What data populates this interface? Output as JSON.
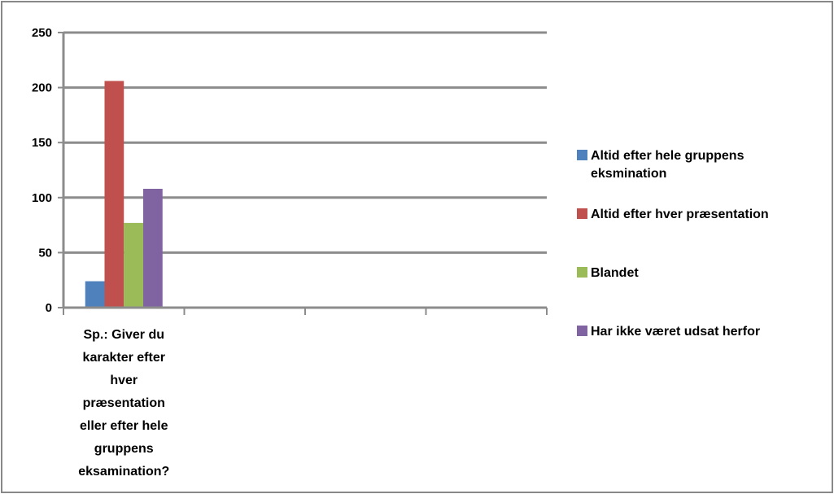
{
  "chart_data": {
    "type": "bar",
    "categories": [
      "Sp.: Giver du karakter efter hver præsentation eller efter hele gruppens eksamination?"
    ],
    "category_label_lines": [
      "Sp.: Giver du",
      "karakter efter",
      "hver",
      "præsentation",
      "eller efter hele",
      "gruppens",
      "eksamination?"
    ],
    "series": [
      {
        "name": "Altid efter hele gruppens eksmination",
        "legend_lines": [
          "Altid efter hele gruppens",
          "eksmination"
        ],
        "color": "#4F81BD",
        "values": [
          24
        ]
      },
      {
        "name": "Altid efter hver præsentation",
        "legend_lines": [
          "Altid efter hver præsentation"
        ],
        "color": "#C0504D",
        "values": [
          206
        ]
      },
      {
        "name": "Blandet",
        "legend_lines": [
          "Blandet"
        ],
        "color": "#9BBB59",
        "values": [
          77
        ]
      },
      {
        "name": "Har ikke været udsat herfor",
        "legend_lines": [
          "Har ikke været udsat herfor"
        ],
        "color": "#8064A2",
        "values": [
          108
        ]
      }
    ],
    "ylim": [
      0,
      250
    ],
    "yticks": [
      0,
      50,
      100,
      150,
      200,
      250
    ],
    "ytick_labels": [
      "0",
      "50",
      "100",
      "150",
      "200",
      "250"
    ],
    "x_slots": 4,
    "grid": true,
    "legend_position": "right",
    "title": "",
    "xlabel": "",
    "ylabel": ""
  }
}
